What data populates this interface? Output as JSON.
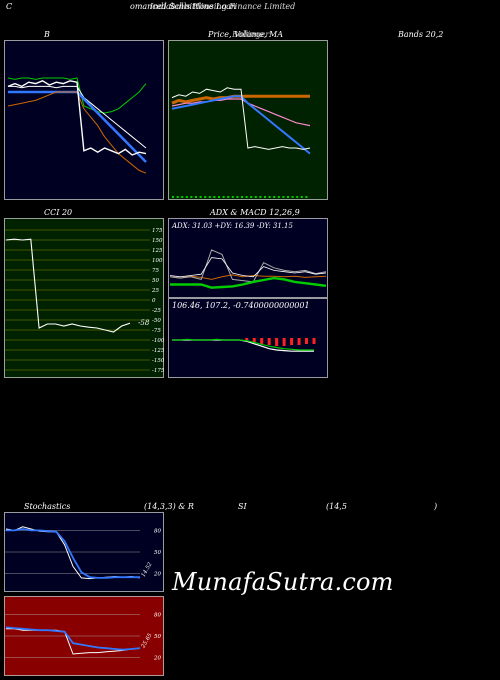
{
  "header": {
    "left": "C",
    "center": "Indiabulls Housing Finance Limited",
    "center_overlap": "omanced Schnittline Loan"
  },
  "titles": {
    "bollinger_b": "B",
    "bollinger_mid": "Price, Volume, MA",
    "bollinger_mid2": "Bollinger",
    "bollinger_right": "Bands 20,2",
    "cci": "CCI 20",
    "adx_macd": "ADX  & MACD 12,26,9",
    "stoch_left": "Stochastics",
    "stoch_mid": "(14,3,3) & R",
    "rsi_mid": "SI",
    "rsi_params": "(14,5",
    "rsi_close": ")"
  },
  "colors": {
    "panel_bg": "#000022",
    "mid_bg": "#002200",
    "cci_bg": "#002200",
    "rsi_bg": "#880000",
    "blue": "#3377ff",
    "white": "#ffffff",
    "green": "#00cc00",
    "orange": "#cc6600"
  },
  "chart_data": [
    {
      "name": "bollinger",
      "type": "line",
      "series": [
        {
          "values": [
            80,
            79,
            80,
            80,
            79,
            80,
            80,
            80,
            80,
            79,
            80,
            60,
            58,
            56,
            55,
            56,
            58,
            62,
            66,
            70,
            76
          ]
        },
        {
          "values": [
            74,
            74,
            73,
            74,
            74,
            74,
            74,
            73,
            74,
            74,
            74,
            66,
            62,
            58,
            54,
            50,
            46,
            42,
            38,
            34,
            30
          ]
        },
        {
          "values": [
            70,
            70,
            70,
            70,
            70,
            70,
            70,
            70,
            70,
            70,
            70,
            65,
            60,
            55,
            50,
            45,
            40,
            35,
            30,
            25,
            20
          ]
        },
        {
          "values": [
            60,
            61,
            62,
            63,
            64,
            66,
            68,
            70,
            70,
            70,
            70,
            58,
            52,
            46,
            38,
            32,
            26,
            22,
            18,
            14,
            12
          ]
        },
        {
          "values": [
            74,
            76,
            74,
            77,
            76,
            78,
            75,
            77,
            76,
            78,
            77,
            28,
            30,
            27,
            30,
            28,
            26,
            29,
            25,
            27,
            26
          ]
        }
      ]
    },
    {
      "name": "price_volume_ma",
      "type": "line",
      "series": [
        {
          "values": [
            62,
            64,
            63,
            64,
            65,
            66,
            65,
            66,
            66,
            67,
            67,
            67,
            67,
            67,
            67,
            67,
            67,
            67,
            67,
            67,
            67
          ]
        },
        {
          "values": [
            60,
            61,
            62,
            62,
            63,
            63,
            64,
            64,
            65,
            65,
            65,
            62,
            60,
            58,
            56,
            54,
            52,
            50,
            48,
            47,
            46
          ]
        },
        {
          "values": [
            58,
            59,
            60,
            61,
            62,
            63,
            64,
            65,
            66,
            67,
            67,
            62,
            58,
            54,
            50,
            46,
            42,
            38,
            34,
            30,
            26
          ]
        },
        {
          "values": [
            66,
            68,
            67,
            70,
            69,
            72,
            71,
            70,
            73,
            72,
            72,
            30,
            31,
            30,
            29,
            30,
            31,
            30,
            30,
            29,
            30
          ]
        }
      ]
    },
    {
      "name": "cci",
      "type": "line",
      "y_ticks": [
        175,
        150,
        125,
        100,
        75,
        50,
        25,
        0,
        -25,
        -50,
        -75,
        -100,
        -125,
        -150,
        -175
      ],
      "last_label": "-58",
      "values": [
        150,
        152,
        150,
        152,
        -70,
        -60,
        -60,
        -65,
        -60,
        -65,
        -68,
        -70,
        -75,
        -80,
        -65,
        -58
      ]
    },
    {
      "name": "adx",
      "type": "line",
      "label": "ADX: 31.03  +DY: 16.39 -DY: 31.15",
      "series": [
        {
          "values": [
            30,
            28,
            31,
            29,
            26,
            30,
            33,
            30,
            32,
            31,
            31,
            30,
            31,
            29,
            30,
            31
          ]
        },
        {
          "values": [
            30,
            28,
            30,
            26,
            72,
            65,
            26,
            24,
            22,
            52,
            44,
            40,
            38,
            40,
            35,
            38
          ]
        },
        {
          "values": [
            32,
            30,
            32,
            34,
            60,
            58,
            36,
            32,
            30,
            46,
            40,
            38,
            36,
            38,
            34,
            36
          ]
        },
        {
          "values": [
            18,
            18,
            18,
            18,
            13,
            14,
            15,
            18,
            22,
            25,
            28,
            26,
            22,
            20,
            18,
            16
          ]
        }
      ]
    },
    {
      "name": "macd",
      "type": "line",
      "label": "106.46,  107.2,  -0.7400000000001",
      "histogram": [
        0,
        0,
        0,
        0,
        0,
        0,
        0,
        0,
        0,
        0,
        -2,
        -4,
        -6,
        -7,
        -8,
        -8,
        -7,
        -7,
        -6,
        -6
      ],
      "series": [
        {
          "values": [
            58,
            58,
            58,
            58,
            58,
            58,
            58,
            58,
            58,
            58,
            56,
            52,
            48,
            44,
            42,
            41,
            40,
            40,
            40,
            40
          ]
        },
        {
          "values": [
            58,
            58,
            59,
            58,
            58,
            58,
            59,
            58,
            58,
            58,
            57,
            54,
            51,
            48,
            46,
            44,
            43,
            42,
            42,
            42
          ]
        }
      ]
    },
    {
      "name": "stochastics",
      "type": "line",
      "y_ticks": [
        80,
        50,
        20
      ],
      "last_label": "14.52",
      "series": [
        {
          "values": [
            82,
            80,
            85,
            82,
            79,
            78,
            78,
            60,
            30,
            14,
            13,
            14,
            15,
            16,
            15,
            16,
            14
          ]
        },
        {
          "values": [
            80,
            80,
            82,
            80,
            80,
            79,
            78,
            65,
            42,
            22,
            15,
            14,
            14,
            15,
            15,
            15,
            15
          ]
        }
      ]
    },
    {
      "name": "rsi",
      "type": "line",
      "y_ticks": [
        80,
        50,
        20
      ],
      "last_label": "25.65",
      "series": [
        {
          "values": [
            60,
            60,
            58,
            58,
            58,
            58,
            58,
            56,
            25,
            26,
            27,
            27,
            28,
            29,
            30,
            32,
            33
          ]
        },
        {
          "values": [
            62,
            61,
            60,
            59,
            58,
            58,
            57,
            56,
            40,
            38,
            36,
            34,
            33,
            32,
            31,
            32,
            33
          ]
        }
      ]
    }
  ]
}
